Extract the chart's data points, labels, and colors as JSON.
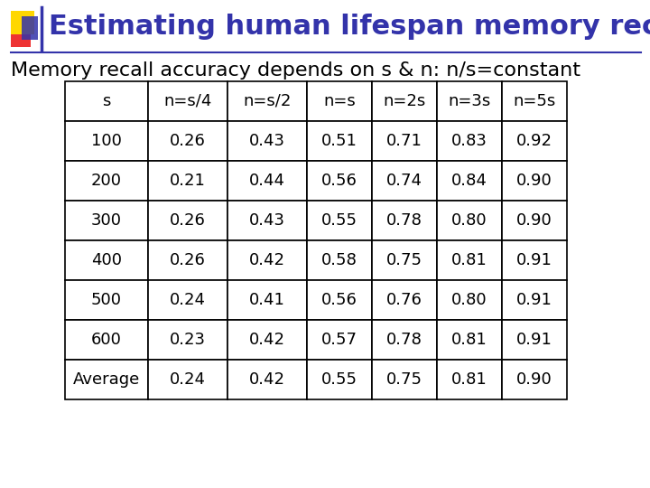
{
  "title": "Estimating human lifespan memory recall",
  "subtitle": "Memory recall accuracy depends on s & n: n/s=constant",
  "title_color": "#3333AA",
  "subtitle_color": "#000000",
  "bg_color": "#FFFFFF",
  "col_headers": [
    "s",
    "n=s/4",
    "n=s/2",
    "n=s",
    "n=2s",
    "n=3s",
    "n=5s"
  ],
  "row_labels": [
    "100",
    "200",
    "300",
    "400",
    "500",
    "600",
    "Average"
  ],
  "table_data": [
    [
      "0.26",
      "0.43",
      "0.51",
      "0.71",
      "0.83",
      "0.92"
    ],
    [
      "0.21",
      "0.44",
      "0.56",
      "0.74",
      "0.84",
      "0.90"
    ],
    [
      "0.26",
      "0.43",
      "0.55",
      "0.78",
      "0.80",
      "0.90"
    ],
    [
      "0.26",
      "0.42",
      "0.58",
      "0.75",
      "0.81",
      "0.91"
    ],
    [
      "0.24",
      "0.41",
      "0.56",
      "0.76",
      "0.80",
      "0.91"
    ],
    [
      "0.23",
      "0.42",
      "0.57",
      "0.78",
      "0.81",
      "0.91"
    ],
    [
      "0.24",
      "0.42",
      "0.55",
      "0.75",
      "0.81",
      "0.90"
    ]
  ],
  "header_font_size": 13,
  "cell_font_size": 13,
  "title_font_size": 22,
  "subtitle_font_size": 16,
  "logo_yellow": "#FFD700",
  "logo_red": "#EE3333",
  "logo_blue": "#3333AA"
}
